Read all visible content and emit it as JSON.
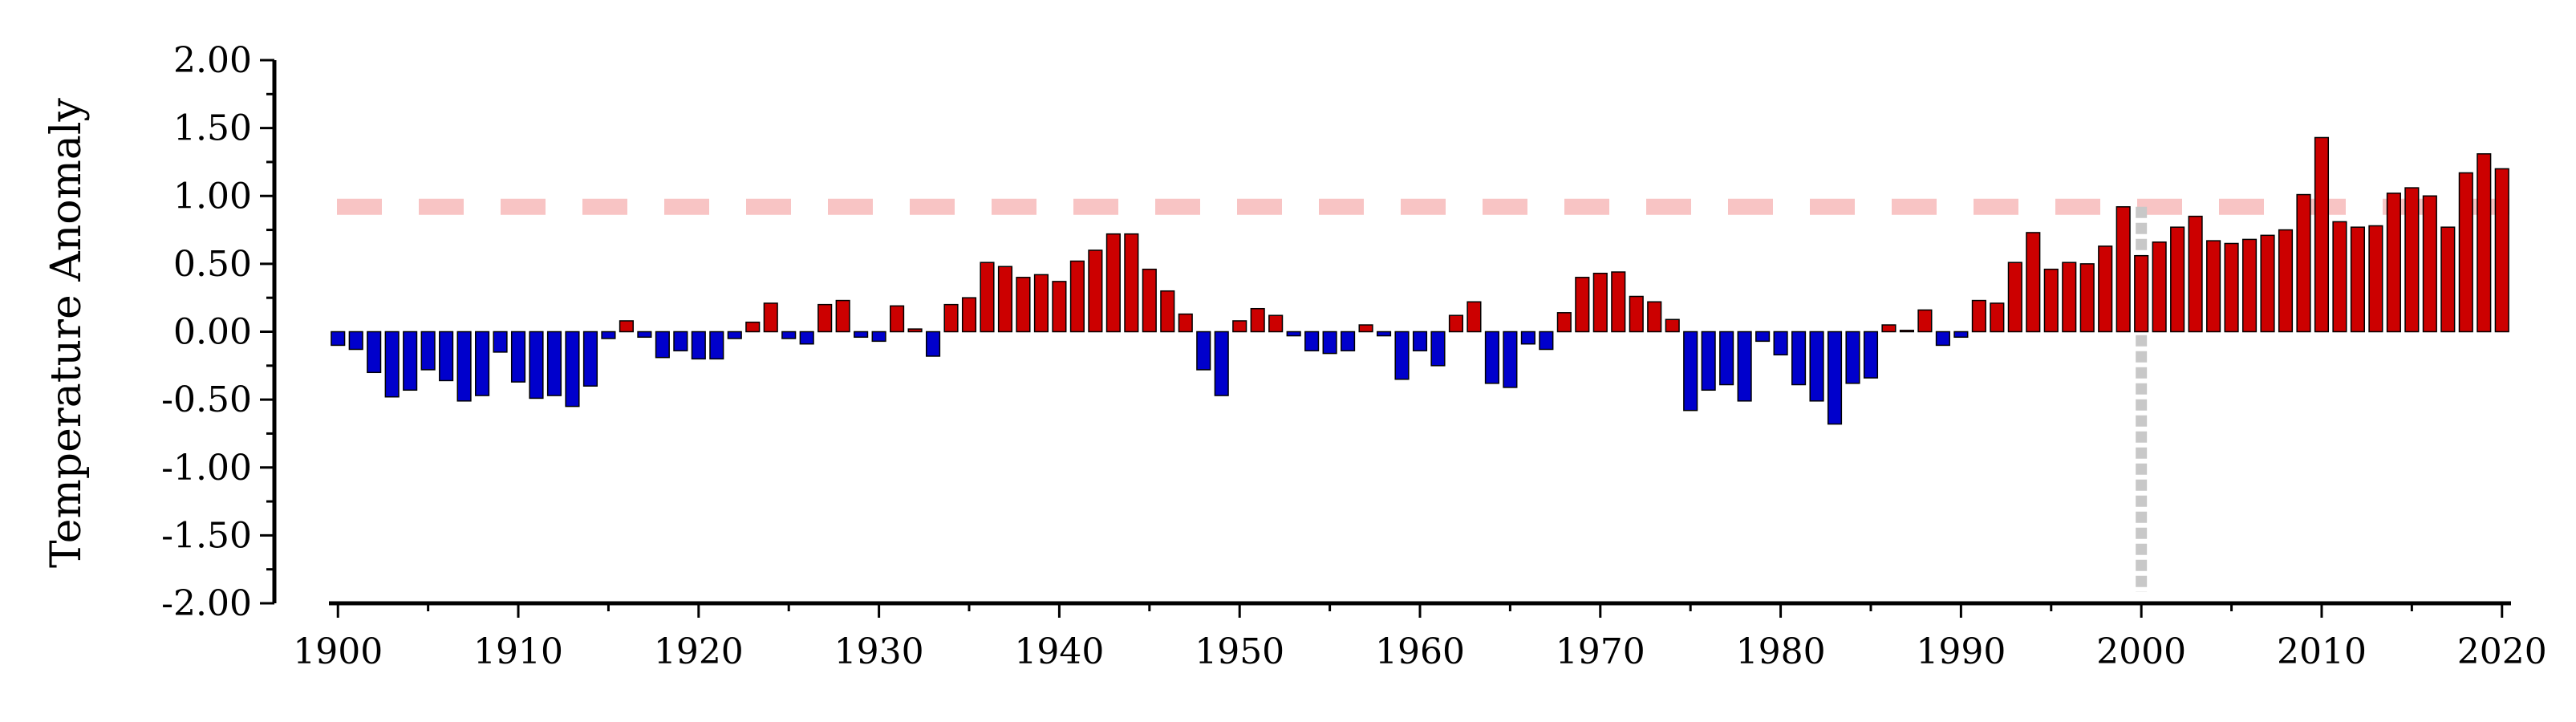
{
  "chart_data": {
    "type": "bar",
    "ylabel": "Temperature Anomaly",
    "xlabel": "",
    "title": "",
    "ylim": [
      -2.0,
      2.0
    ],
    "xlim": [
      1899.5,
      2020.5
    ],
    "y_ticks": [
      "2.00",
      "1.50",
      "1.00",
      "0.50",
      "0.00",
      "-0.50",
      "-1.00",
      "-1.50",
      "-2.00"
    ],
    "y_tick_values": [
      2.0,
      1.5,
      1.0,
      0.5,
      0.0,
      -0.5,
      -1.0,
      -1.5,
      -2.0
    ],
    "x_ticks": [
      "1900",
      "1910",
      "1920",
      "1930",
      "1940",
      "1950",
      "1960",
      "1970",
      "1980",
      "1990",
      "2000",
      "2010",
      "2020"
    ],
    "x_tick_values": [
      1900,
      1910,
      1920,
      1930,
      1940,
      1950,
      1960,
      1970,
      1980,
      1990,
      2000,
      2010,
      2020
    ],
    "grid": false,
    "colors": {
      "positive": "#cc0000",
      "negative": "#0000cc",
      "reference": "#f8c4c4",
      "marker": "#c8c8c8"
    },
    "reference_line": {
      "y": 0.92,
      "style": "dashed"
    },
    "vertical_marker": {
      "x": 2000,
      "style": "dotted"
    },
    "years": [
      1900,
      1901,
      1902,
      1903,
      1904,
      1905,
      1906,
      1907,
      1908,
      1909,
      1910,
      1911,
      1912,
      1913,
      1914,
      1915,
      1916,
      1917,
      1918,
      1919,
      1920,
      1921,
      1922,
      1923,
      1924,
      1925,
      1926,
      1927,
      1928,
      1929,
      1930,
      1931,
      1932,
      1933,
      1934,
      1935,
      1936,
      1937,
      1938,
      1939,
      1940,
      1941,
      1942,
      1943,
      1944,
      1945,
      1946,
      1947,
      1948,
      1949,
      1950,
      1951,
      1952,
      1953,
      1954,
      1955,
      1956,
      1957,
      1958,
      1959,
      1960,
      1961,
      1962,
      1963,
      1964,
      1965,
      1966,
      1967,
      1968,
      1969,
      1970,
      1971,
      1972,
      1973,
      1974,
      1975,
      1976,
      1977,
      1978,
      1979,
      1980,
      1981,
      1982,
      1983,
      1984,
      1985,
      1986,
      1987,
      1988,
      1989,
      1990,
      1991,
      1992,
      1993,
      1994,
      1995,
      1996,
      1997,
      1998,
      1999,
      2000,
      2001,
      2002,
      2003,
      2004,
      2005,
      2006,
      2007,
      2008,
      2009,
      2010,
      2011,
      2012,
      2013,
      2014,
      2015,
      2016,
      2017,
      2018,
      2019,
      2020
    ],
    "values": [
      -0.1,
      -0.13,
      -0.3,
      -0.48,
      -0.43,
      -0.28,
      -0.36,
      -0.51,
      -0.47,
      -0.15,
      -0.37,
      -0.49,
      -0.47,
      -0.55,
      -0.4,
      -0.05,
      0.08,
      -0.04,
      -0.19,
      -0.14,
      -0.2,
      -0.2,
      -0.05,
      0.07,
      0.21,
      -0.05,
      -0.09,
      0.2,
      0.23,
      -0.04,
      -0.07,
      0.19,
      0.02,
      -0.18,
      0.2,
      0.25,
      0.51,
      0.48,
      0.4,
      0.42,
      0.37,
      0.52,
      0.6,
      0.72,
      0.72,
      0.46,
      0.3,
      0.13,
      -0.28,
      -0.47,
      0.08,
      0.17,
      0.12,
      -0.03,
      -0.14,
      -0.16,
      -0.14,
      0.05,
      -0.03,
      -0.35,
      -0.14,
      -0.25,
      0.12,
      0.22,
      -0.38,
      -0.41,
      -0.09,
      -0.13,
      0.14,
      0.4,
      0.43,
      0.44,
      0.26,
      0.22,
      0.09,
      -0.58,
      -0.43,
      -0.39,
      -0.51,
      -0.07,
      -0.17,
      -0.39,
      -0.51,
      -0.68,
      -0.38,
      -0.34,
      0.05,
      0.01,
      0.16,
      -0.1,
      -0.04,
      0.23,
      0.21,
      0.51,
      0.73,
      0.46,
      0.51,
      0.5,
      0.63,
      0.92,
      0.56,
      0.66,
      0.77,
      0.85,
      0.67,
      0.65,
      0.68,
      0.71,
      0.75,
      1.01,
      1.43,
      0.81,
      0.77,
      0.78,
      1.02,
      1.06,
      1.0,
      0.77,
      1.17,
      1.31,
      1.2
    ]
  }
}
